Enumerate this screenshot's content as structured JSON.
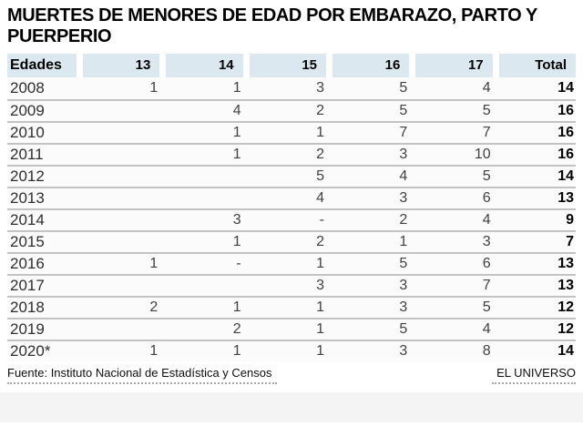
{
  "chart_data": {
    "type": "table",
    "title": "MUERTES DE MENORES DE EDAD POR EMBARAZO, PARTO Y PUERPERIO",
    "columns": [
      "Edades",
      "13",
      "14",
      "15",
      "16",
      "17",
      "Total"
    ],
    "rows": [
      {
        "year": "2008",
        "values": [
          "1",
          "1",
          "3",
          "5",
          "4"
        ],
        "total": "14"
      },
      {
        "year": "2009",
        "values": [
          "",
          "4",
          "2",
          "5",
          "5"
        ],
        "total": "16"
      },
      {
        "year": "2010",
        "values": [
          "",
          "1",
          "1",
          "7",
          "7"
        ],
        "total": "16"
      },
      {
        "year": "2011",
        "values": [
          "",
          "1",
          "2",
          "3",
          "10"
        ],
        "total": "16"
      },
      {
        "year": "2012",
        "values": [
          "",
          "",
          "5",
          "4",
          "5"
        ],
        "total": "14"
      },
      {
        "year": "2013",
        "values": [
          "",
          "",
          "4",
          "3",
          "6"
        ],
        "total": "13"
      },
      {
        "year": "2014",
        "values": [
          "",
          "3",
          "-",
          "2",
          "4"
        ],
        "total": "9"
      },
      {
        "year": "2015",
        "values": [
          "",
          "1",
          "2",
          "1",
          "3"
        ],
        "total": "7"
      },
      {
        "year": "2016",
        "values": [
          "1",
          "-",
          "1",
          "5",
          "6"
        ],
        "total": "13"
      },
      {
        "year": "2017",
        "values": [
          "",
          "",
          "3",
          "3",
          "7"
        ],
        "total": "13"
      },
      {
        "year": "2018",
        "values": [
          "2",
          "1",
          "1",
          "3",
          "5"
        ],
        "total": "12"
      },
      {
        "year": "2019",
        "values": [
          "",
          "2",
          "1",
          "5",
          "4"
        ],
        "total": "12"
      },
      {
        "year": "2020*",
        "values": [
          "1",
          "1",
          "1",
          "3",
          "8"
        ],
        "total": "14"
      }
    ],
    "legend_position": "none",
    "grid": "horizontal-row-separators"
  },
  "footer": {
    "source": "Fuente: Instituto Nacional de Estadística y Censos",
    "credit": "EL UNIVERSO"
  },
  "colors": {
    "header_cell_bg": "#dbe8ef",
    "title_text": "#000000",
    "row_separator": "#c3c3c3",
    "year_text": "#2e2e2e",
    "value_text": "#414141",
    "total_text": "#000000",
    "footer_text": "#0d0d0d",
    "bottom_band": "#f4f4f4"
  }
}
